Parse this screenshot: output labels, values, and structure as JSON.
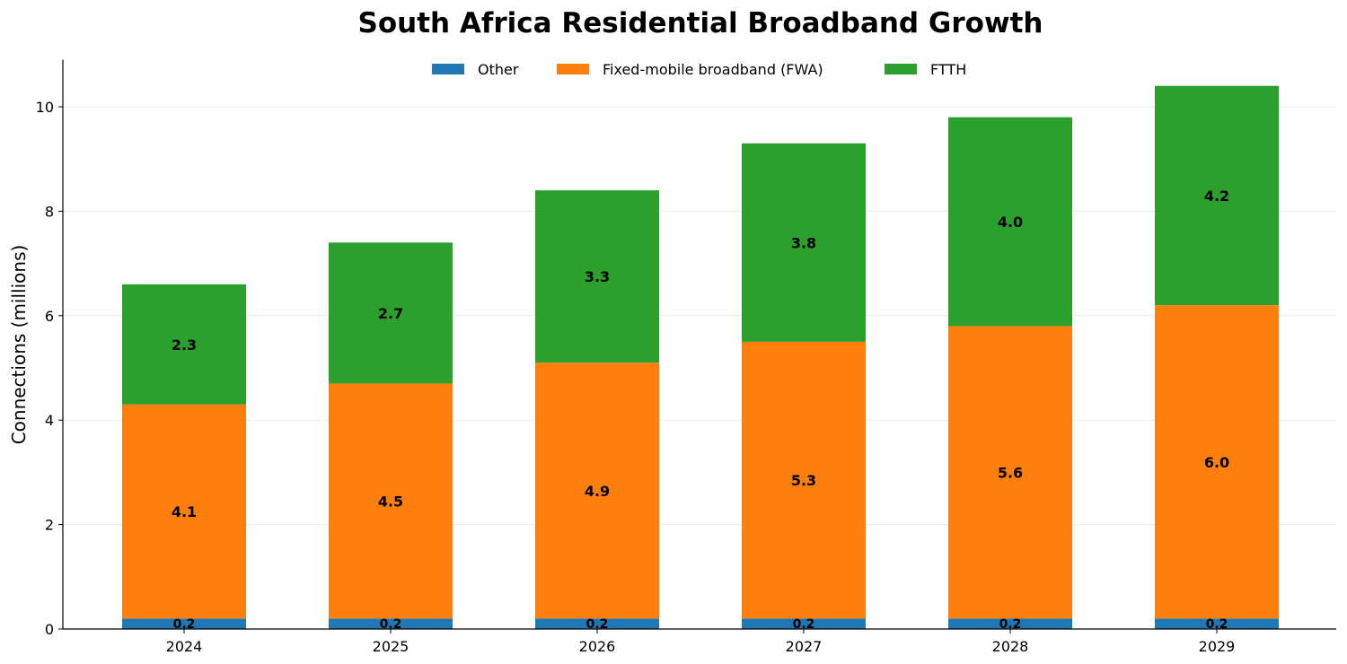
{
  "chart_data": {
    "type": "bar",
    "stacked": true,
    "title": "South Africa Residential Broadband Growth",
    "xlabel": "",
    "ylabel": "Connections (millions)",
    "categories": [
      "2024",
      "2025",
      "2026",
      "2027",
      "2028",
      "2029"
    ],
    "series": [
      {
        "name": "Other",
        "color": "#1f77b4",
        "values": [
          0.2,
          0.2,
          0.2,
          0.2,
          0.2,
          0.2
        ],
        "labels": [
          "0.2",
          "0.2",
          "0.2",
          "0.2",
          "0.2",
          "0.2"
        ]
      },
      {
        "name": "Fixed-mobile broadband (FWA)",
        "color": "#ff7f0e",
        "values": [
          4.1,
          4.5,
          4.9,
          5.3,
          5.6,
          6.0
        ],
        "labels": [
          "4.1",
          "4.5",
          "4.9",
          "5.3",
          "5.6",
          "6.0"
        ]
      },
      {
        "name": "FTTH",
        "color": "#2ca02c",
        "values": [
          2.3,
          2.7,
          3.3,
          3.8,
          4.0,
          4.2
        ],
        "labels": [
          "2.3",
          "2.7",
          "3.3",
          "3.8",
          "4.0",
          "4.2"
        ]
      }
    ],
    "ylim": [
      0,
      10.9
    ],
    "yticks": [
      "0",
      "2",
      "4",
      "6",
      "8",
      "10"
    ],
    "grid": "horizontal",
    "legend": "top-center"
  }
}
